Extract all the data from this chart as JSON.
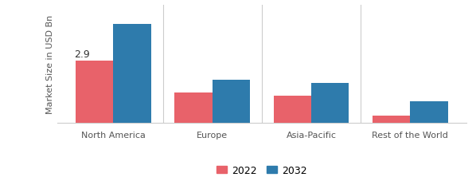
{
  "categories": [
    "North America",
    "Europe",
    "Asia-Pacific",
    "Rest of the World"
  ],
  "values_2022": [
    2.9,
    1.4,
    1.25,
    0.35
  ],
  "values_2032": [
    4.6,
    2.0,
    1.85,
    1.0
  ],
  "color_2022": "#e8626a",
  "color_2032": "#2e7bac",
  "annotation_text": "2.9",
  "ylabel": "Market Size in USD Bn",
  "legend_2022": "2022",
  "legend_2032": "2032",
  "bar_width": 0.38,
  "ylim": [
    0,
    5.5
  ],
  "background_color": "#ffffff",
  "ylabel_fontsize": 8,
  "xtick_fontsize": 8,
  "legend_fontsize": 9
}
